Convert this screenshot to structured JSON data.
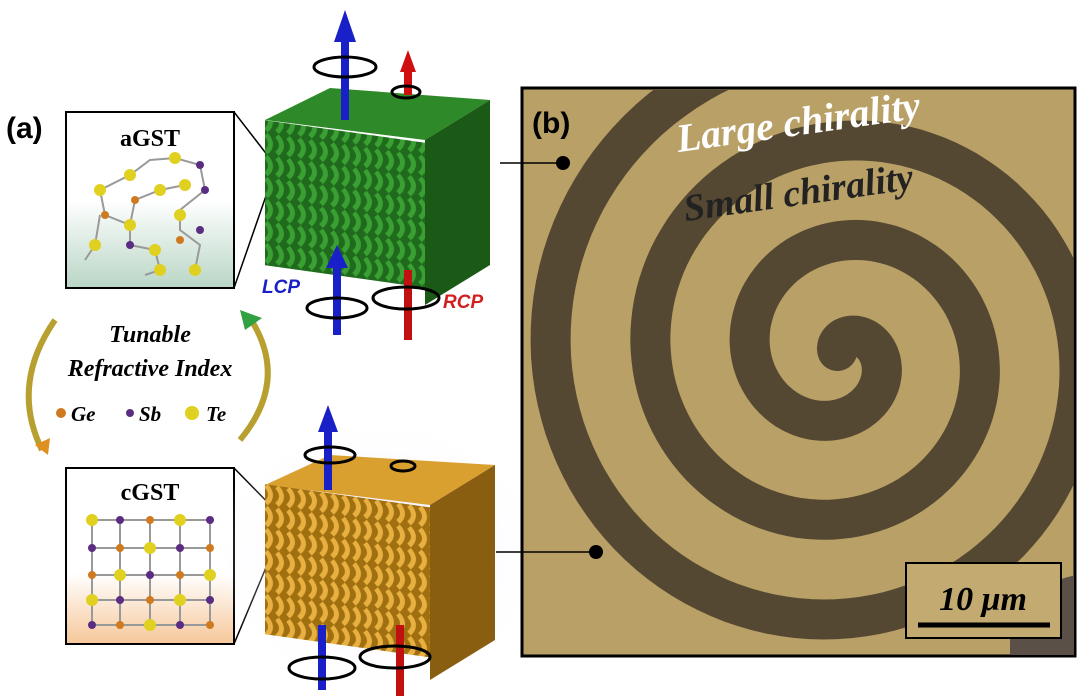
{
  "panel_a": {
    "label": "(a)",
    "amorphous": {
      "label": "aGST"
    },
    "crystalline": {
      "label": "cGST"
    },
    "beams": {
      "left": "LCP",
      "right": "RCP"
    },
    "caption": {
      "line1": "Tunable",
      "line2": "Refractive Index"
    },
    "legend": [
      "Ge",
      "Sb",
      "Te"
    ]
  },
  "panel_b": {
    "label": "(b)",
    "text_top": "Large chirality",
    "text_bottom": "Small chirality",
    "scale_bar": "10 μm"
  }
}
